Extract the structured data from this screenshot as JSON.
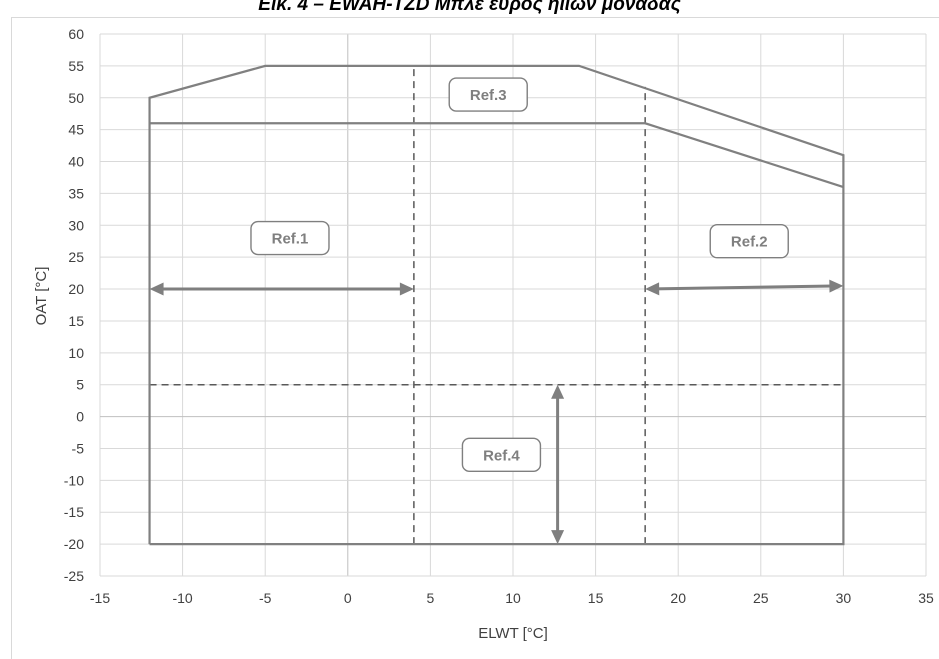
{
  "page_title": "Εικ. 4 – EWAH-TZD Μπλε εύρος ηιιών μονάδας",
  "chart_data": {
    "type": "line",
    "title": "Εικ. 4 – EWAH-TZD Μπλε εύρος ηιιών μονάδας",
    "xlabel": "ELWT [°C]",
    "ylabel": "OAT [°C]",
    "xlim": [
      -15,
      35
    ],
    "ylim": [
      -25,
      60
    ],
    "x_ticks": [
      "-15",
      "-10",
      "-5",
      "0",
      "5",
      "10",
      "15",
      "20",
      "25",
      "30",
      "35"
    ],
    "y_ticks": [
      "60",
      "55",
      "50",
      "45",
      "40",
      "35",
      "30",
      "25",
      "20",
      "15",
      "10",
      "5",
      "0",
      "-5",
      "-10",
      "-15",
      "-20",
      "-25"
    ],
    "grid": true,
    "series": [
      {
        "id": "outer-envelope",
        "color": "#808080",
        "points": [
          [
            -12,
            -20
          ],
          [
            -12,
            50
          ],
          [
            -5,
            55
          ],
          [
            14,
            55
          ],
          [
            30,
            41
          ],
          [
            30,
            -20
          ],
          [
            -12,
            -20
          ]
        ]
      },
      {
        "id": "inner-envelope",
        "color": "#808080",
        "points": [
          [
            -12,
            46
          ],
          [
            18,
            46
          ],
          [
            30,
            36
          ]
        ]
      }
    ],
    "reference_lines": [
      {
        "id": "ref-line-x4",
        "orientation": "vertical",
        "x": 4,
        "y_range": [
          -20,
          55
        ],
        "style": "dashed"
      },
      {
        "id": "ref-line-x18",
        "orientation": "vertical",
        "x": 18,
        "y_range": [
          -20,
          51.7
        ],
        "style": "dashed"
      },
      {
        "id": "ref-line-y5",
        "orientation": "horizontal",
        "y": 5,
        "x_range": [
          -12,
          30
        ],
        "style": "dashed"
      }
    ],
    "arrows": [
      {
        "id": "ref1-arrow",
        "from": [
          -12,
          20
        ],
        "to": [
          4,
          20
        ],
        "double": true
      },
      {
        "id": "ref2-arrow",
        "from": [
          18,
          20
        ],
        "to": [
          30,
          20.5
        ],
        "double": true
      },
      {
        "id": "ref4-arrow",
        "from": [
          12.7,
          5
        ],
        "to": [
          12.7,
          -20
        ],
        "double": true
      }
    ],
    "annotations": [
      {
        "id": "ref1",
        "text": "Ref.1",
        "x": -3.5,
        "y": 28
      },
      {
        "id": "ref2",
        "text": "Ref.2",
        "x": 24.3,
        "y": 27.5
      },
      {
        "id": "ref3",
        "text": "Ref.3",
        "x": 8.5,
        "y": 50.5
      },
      {
        "id": "ref4",
        "text": "Ref.4",
        "x": 9.3,
        "y": -6
      }
    ]
  }
}
